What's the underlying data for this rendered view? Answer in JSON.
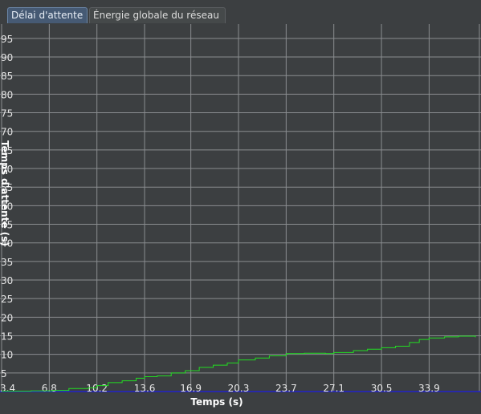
{
  "tabs": [
    {
      "label": "Délai d'attente",
      "active": true
    },
    {
      "label": "Énergie globale du réseau",
      "active": false
    }
  ],
  "colors": {
    "background": "#3c3f41",
    "grid": "#8a8d90",
    "series": "#22dd22",
    "axis": "#2222cc"
  },
  "chart_data": {
    "type": "line",
    "xlabel": "Temps (s)",
    "ylabel": "Temps d'attente (s)",
    "xlim": [
      3.4,
      37.2
    ],
    "ylim": [
      0,
      98
    ],
    "grid": true,
    "x_ticks": [
      "3.4",
      "6.8",
      "10.2",
      "13.6",
      "16.9",
      "20.3",
      "23.7",
      "27.1",
      "30.5",
      "33.9"
    ],
    "y_ticks": [
      "5",
      "10",
      "15",
      "20",
      "25",
      "30",
      "35",
      "40",
      "45",
      "50",
      "55",
      "60",
      "65",
      "70",
      "75",
      "80",
      "85",
      "90",
      "95"
    ],
    "series": [
      {
        "x": [
          3.4,
          5.5,
          7.0,
          8.2,
          9.6,
          10.2,
          11.0,
          12.0,
          13.0,
          13.6,
          14.5,
          15.5,
          16.5,
          17.5,
          18.5,
          19.5,
          20.3,
          21.5,
          22.5,
          23.7,
          25.0,
          26.5,
          27.1,
          28.5,
          29.5,
          30.5,
          31.5,
          32.5,
          33.2,
          33.9,
          35.0,
          36.0,
          37.2
        ],
        "y": [
          0.1,
          0.2,
          0.3,
          0.8,
          1.0,
          1.6,
          2.4,
          2.9,
          3.6,
          4.0,
          4.2,
          5.0,
          5.6,
          6.5,
          7.1,
          7.7,
          8.5,
          9.0,
          9.6,
          10.2,
          10.3,
          10.2,
          10.5,
          11.0,
          11.4,
          11.8,
          12.2,
          13.2,
          14.0,
          14.4,
          14.7,
          14.9,
          14.6
        ]
      }
    ]
  }
}
